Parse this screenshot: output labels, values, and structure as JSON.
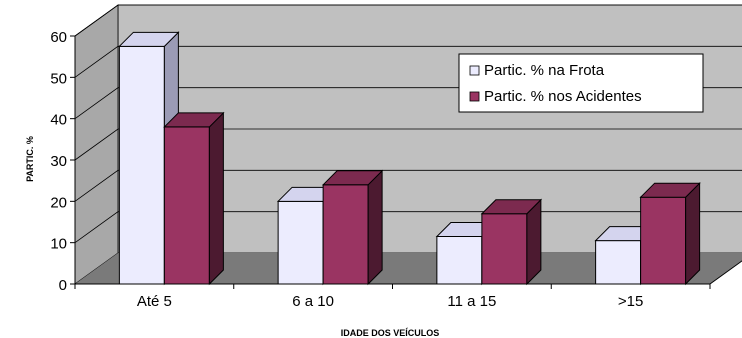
{
  "chart_data": {
    "type": "bar",
    "categories": [
      "Até 5",
      "6 a 10",
      "11 a 15",
      ">15"
    ],
    "series": [
      {
        "name": "Partic. % na Frota",
        "values": [
          57.5,
          20,
          11.5,
          10.5
        ]
      },
      {
        "name": "Partic. % nos Acidentes",
        "values": [
          38,
          24,
          17,
          21
        ]
      }
    ],
    "xlabel": "IDADE DOS VEÍCULOS",
    "ylabel": "PARTIC. %",
    "ylim": [
      0,
      60
    ],
    "yticks": [
      "0",
      "10",
      "20",
      "30",
      "40",
      "50",
      "60"
    ],
    "grid": true,
    "legend_position": "top-right",
    "colors": {
      "series": [
        "#ececfe",
        "#9a3462"
      ],
      "series_side": [
        "#9b9bb5",
        "#4c1a30"
      ],
      "series_top": [
        "#d4d4ee",
        "#7c2a4f"
      ],
      "back_wall": "#c0c0c0",
      "side_wall": "#a8a8a8",
      "floor": "#7a7a7a",
      "gridline": "#000000"
    }
  }
}
